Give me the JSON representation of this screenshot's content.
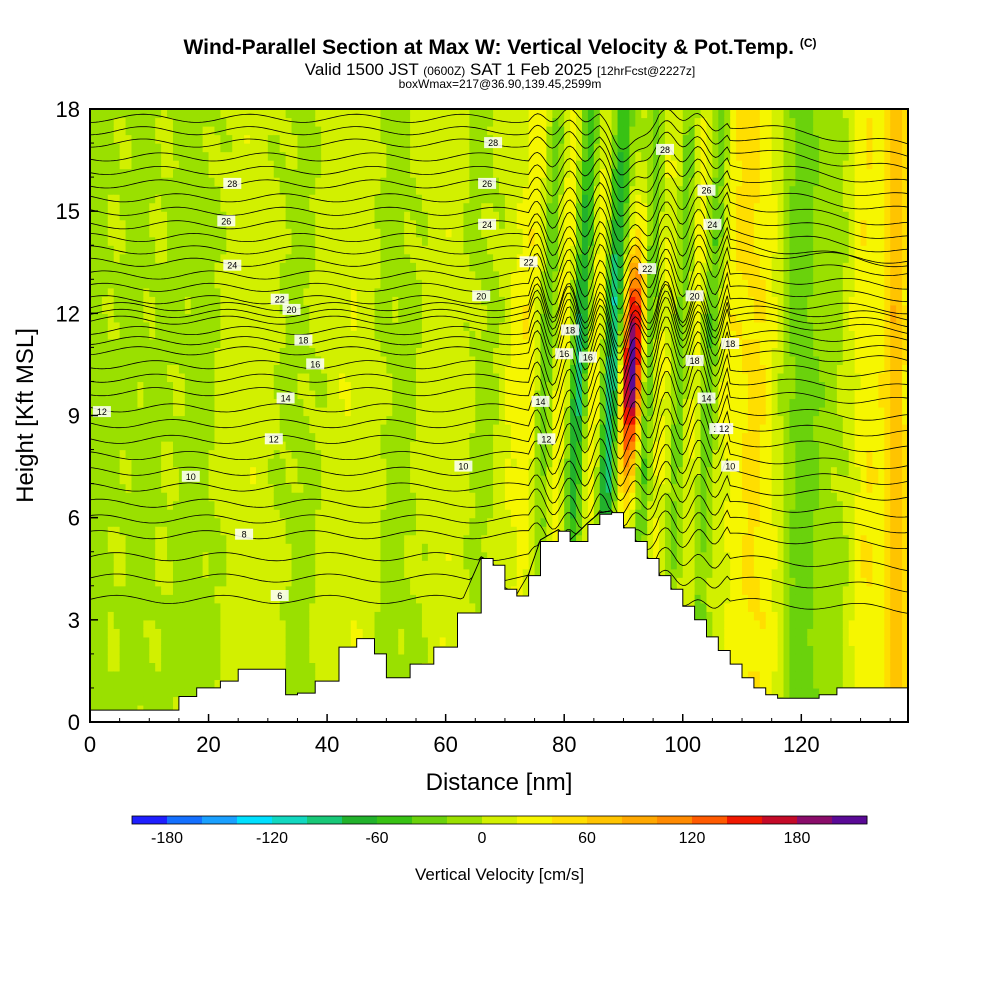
{
  "header": {
    "title": "Wind-Parallel Section at Max W: Vertical Velocity & Pot.Temp.",
    "copyright": "(C)",
    "valid_prefix": "Valid 1500 JST",
    "valid_utc": "(0600Z)",
    "valid_date": "SAT 1 Feb 2025",
    "forecast": "[12hrFcst@2227z]",
    "boxinfo": "boxWmax=217@36.90,139.45,2599m"
  },
  "chart_data": {
    "type": "heatmap",
    "xlabel": "Distance [nm]",
    "ylabel": "Height [Kft MSL]",
    "xlim": [
      0,
      138
    ],
    "ylim": [
      0,
      18
    ],
    "xticks": [
      0,
      20,
      40,
      60,
      80,
      100,
      120
    ],
    "yticks": [
      0,
      3,
      6,
      9,
      12,
      15,
      18
    ],
    "colorbar": {
      "label": "Vertical Velocity [cm/s]",
      "ticks": [
        -180,
        -120,
        -60,
        0,
        60,
        120,
        180
      ],
      "levels": [
        -200,
        -180,
        -160,
        -140,
        -120,
        -100,
        -80,
        -60,
        -40,
        -20,
        0,
        20,
        40,
        60,
        80,
        100,
        120,
        140,
        160,
        180,
        200
      ],
      "colors": [
        "#1f1fff",
        "#1470ff",
        "#1aa0ff",
        "#00e0ff",
        "#12d8c0",
        "#18c878",
        "#22b22c",
        "#38c214",
        "#6ad20c",
        "#9ae000",
        "#d2f000",
        "#f6f600",
        "#ffde00",
        "#ffc400",
        "#ffa800",
        "#ff8a00",
        "#ff5a00",
        "#f01800",
        "#c40a28",
        "#8a0c6a",
        "#5a0a96"
      ]
    },
    "terrain_profile": {
      "x_nm": [
        0,
        5,
        10,
        15,
        18,
        22,
        25,
        30,
        33,
        35,
        38,
        42,
        45,
        48,
        50,
        54,
        58,
        62,
        66,
        68,
        70,
        72,
        74,
        76,
        79,
        81,
        84,
        86,
        88,
        90,
        92,
        94,
        96,
        98,
        100,
        102,
        104,
        106,
        108,
        110,
        112,
        114,
        116,
        118,
        120,
        123,
        126,
        130,
        134,
        138
      ],
      "height_kft": [
        0.35,
        0.35,
        0.35,
        0.75,
        1.0,
        1.2,
        1.55,
        1.55,
        0.8,
        0.85,
        1.2,
        2.2,
        2.45,
        2.0,
        1.3,
        1.7,
        2.2,
        3.2,
        4.8,
        4.6,
        3.9,
        3.7,
        4.3,
        5.3,
        5.6,
        5.3,
        5.8,
        6.1,
        6.15,
        5.7,
        5.3,
        4.8,
        4.3,
        3.9,
        3.4,
        3.0,
        2.5,
        2.1,
        1.7,
        1.3,
        1.0,
        0.8,
        0.7,
        0.7,
        0.7,
        0.8,
        1.0,
        1.0,
        1.0,
        1.0
      ]
    },
    "theta_contours": [
      {
        "label": "6",
        "y_kft": 3.6
      },
      {
        "label": "8",
        "y_kft": 5.5
      },
      {
        "label": "10",
        "y_kft": 6.9
      },
      {
        "label": "12",
        "y_kft": 8.3
      },
      {
        "label": "14",
        "y_kft": 9.7
      },
      {
        "label": "16",
        "y_kft": 10.9
      },
      {
        "label": "18",
        "y_kft": 11.8
      },
      {
        "label": "20",
        "y_kft": 12.4
      },
      {
        "label": "22",
        "y_kft": 13.5
      },
      {
        "label": "24",
        "y_kft": 14.6
      },
      {
        "label": "26",
        "y_kft": 15.8
      },
      {
        "label": "28",
        "y_kft": 17.0
      }
    ],
    "contour_label_texts": [
      "12",
      "10",
      "8",
      "6",
      "12",
      "14",
      "16",
      "18",
      "20",
      "22",
      "24",
      "26",
      "28",
      "10",
      "12",
      "14",
      "16",
      "18",
      "20",
      "22",
      "24",
      "26",
      "28",
      "12",
      "16",
      "22",
      "26",
      "28",
      "24",
      "20",
      "18",
      "18",
      "14",
      "12",
      "10"
    ],
    "w_features": [
      {
        "x_nm": 1,
        "w_cm_s": -15,
        "width_nm": 2
      },
      {
        "x_nm": 8,
        "w_cm_s": -10,
        "width_nm": 4
      },
      {
        "x_nm": 18,
        "w_cm_s": -12,
        "width_nm": 4
      },
      {
        "x_nm": 27,
        "w_cm_s": 10,
        "width_nm": 5
      },
      {
        "x_nm": 35,
        "w_cm_s": -10,
        "width_nm": 4
      },
      {
        "x_nm": 44,
        "w_cm_s": 12,
        "width_nm": 5
      },
      {
        "x_nm": 52,
        "w_cm_s": -12,
        "width_nm": 4
      },
      {
        "x_nm": 60,
        "w_cm_s": 10,
        "width_nm": 5
      },
      {
        "x_nm": 66,
        "w_cm_s": -10,
        "width_nm": 3
      },
      {
        "x_nm": 71,
        "w_cm_s": 15,
        "width_nm": 2
      },
      {
        "x_nm": 74,
        "w_cm_s": 35,
        "width_nm": 2
      },
      {
        "x_nm": 77,
        "w_cm_s": -45,
        "width_nm": 1.5
      },
      {
        "x_nm": 79.5,
        "w_cm_s": 40,
        "width_nm": 1.5
      },
      {
        "x_nm": 82.5,
        "w_cm_s": -90,
        "width_nm": 1.5
      },
      {
        "x_nm": 85,
        "w_cm_s": 40,
        "width_nm": 1.5
      },
      {
        "x_nm": 88,
        "w_cm_s": -110,
        "width_nm": 1.5
      },
      {
        "x_nm": 91.3,
        "w_cm_s": 200,
        "width_nm": 1.8
      },
      {
        "x_nm": 94,
        "w_cm_s": -60,
        "width_nm": 1.2
      },
      {
        "x_nm": 96.5,
        "w_cm_s": 25,
        "width_nm": 2
      },
      {
        "x_nm": 99.5,
        "w_cm_s": -45,
        "width_nm": 1.5
      },
      {
        "x_nm": 102,
        "w_cm_s": 30,
        "width_nm": 2
      },
      {
        "x_nm": 104.5,
        "w_cm_s": -60,
        "width_nm": 1.5
      },
      {
        "x_nm": 107,
        "w_cm_s": 15,
        "width_nm": 3
      },
      {
        "x_nm": 112,
        "w_cm_s": 40,
        "width_nm": 4
      },
      {
        "x_nm": 120,
        "w_cm_s": -35,
        "width_nm": 3
      },
      {
        "x_nm": 126,
        "w_cm_s": -10,
        "width_nm": 4
      },
      {
        "x_nm": 131,
        "w_cm_s": 35,
        "width_nm": 3
      },
      {
        "x_nm": 136,
        "w_cm_s": 70,
        "width_nm": 2
      }
    ]
  }
}
